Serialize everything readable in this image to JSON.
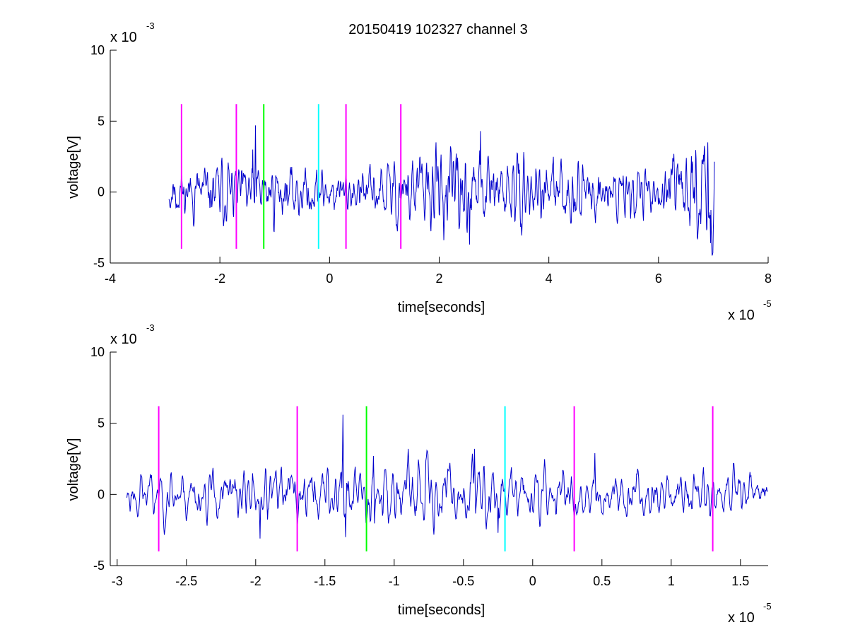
{
  "figure_title": "20150419 102327 channel 3",
  "chart_data": [
    {
      "type": "line",
      "title": "20150419 102327 channel 3",
      "xlabel": "time[seconds]",
      "ylabel": "voltage[V]",
      "x_multiplier": "x 10",
      "x_exponent": "-5",
      "y_multiplier": "x 10",
      "y_exponent": "-3",
      "xlim": [
        -4,
        8
      ],
      "ylim": [
        -5,
        10
      ],
      "xticks": [
        -4,
        -2,
        0,
        2,
        4,
        6,
        8
      ],
      "yticks": [
        -5,
        0,
        5,
        10
      ],
      "xtick_labels": [
        "-4",
        "-2",
        "0",
        "2",
        "4",
        "6",
        "8"
      ],
      "ytick_labels": [
        "-5",
        "0",
        "5",
        "10"
      ],
      "grid": false,
      "signal": {
        "color": "#0000cc",
        "x_range": [
          -2.93,
          7.02
        ],
        "seed": 11,
        "amplitude_profile": [
          [
            -2.93,
            0.9
          ],
          [
            -1.5,
            1.0
          ],
          [
            0.5,
            0.7
          ],
          [
            1.8,
            1.5
          ],
          [
            3.0,
            1.2
          ],
          [
            4.5,
            1.0
          ],
          [
            6.0,
            0.8
          ],
          [
            7.02,
            1.9
          ]
        ],
        "features": [
          {
            "x": -1.35,
            "y": 4.7
          },
          {
            "x": -1.4,
            "y": 3.0
          },
          {
            "x": 2.75,
            "y": 4.3
          },
          {
            "x": 2.55,
            "y": -3.7
          },
          {
            "x": 6.9,
            "y": 3.5
          },
          {
            "x": 6.95,
            "y": -3.6
          }
        ]
      },
      "markers": [
        {
          "x": -2.7,
          "y0": -4,
          "y1": 6.2,
          "color": "#ff00ff"
        },
        {
          "x": -1.7,
          "y0": -4,
          "y1": 6.2,
          "color": "#ff00ff"
        },
        {
          "x": -1.2,
          "y0": -4,
          "y1": 6.2,
          "color": "#00ff00"
        },
        {
          "x": -0.2,
          "y0": -4,
          "y1": 6.2,
          "color": "#00ffff"
        },
        {
          "x": 0.3,
          "y0": -4,
          "y1": 6.2,
          "color": "#ff00ff"
        },
        {
          "x": 1.3,
          "y0": -4,
          "y1": 6.2,
          "color": "#ff00ff"
        }
      ]
    },
    {
      "type": "line",
      "title": "",
      "xlabel": "time[seconds]",
      "ylabel": "voltage[V]",
      "x_multiplier": "x 10",
      "x_exponent": "-5",
      "y_multiplier": "x 10",
      "y_exponent": "-3",
      "xlim": [
        -3.05,
        1.7
      ],
      "ylim": [
        -5,
        10
      ],
      "xticks": [
        -3,
        -2.5,
        -2,
        -1.5,
        -1,
        -0.5,
        0,
        0.5,
        1,
        1.5
      ],
      "yticks": [
        -5,
        0,
        5,
        10
      ],
      "xtick_labels": [
        "-3",
        "-2.5",
        "-2",
        "-1.5",
        "-1",
        "-0.5",
        "0",
        "0.5",
        "1",
        "1.5"
      ],
      "ytick_labels": [
        "-5",
        "0",
        "5",
        "10"
      ],
      "grid": false,
      "signal": {
        "color": "#0000cc",
        "x_range": [
          -2.93,
          1.7
        ],
        "seed": 23,
        "amplitude_profile": [
          [
            -2.93,
            0.8
          ],
          [
            -2.0,
            0.9
          ],
          [
            -1.4,
            1.1
          ],
          [
            -0.5,
            1.1
          ],
          [
            0.0,
            0.9
          ],
          [
            1.0,
            0.7
          ],
          [
            1.7,
            0.7
          ]
        ],
        "features": [
          {
            "x": -1.37,
            "y": 5.6
          },
          {
            "x": -1.35,
            "y": -3.0
          },
          {
            "x": -1.97,
            "y": 2.3
          },
          {
            "x": -1.97,
            "y": -3.1
          },
          {
            "x": -0.42,
            "y": 3.2
          },
          {
            "x": -0.25,
            "y": -2.7
          },
          {
            "x": 0.45,
            "y": 2.9
          },
          {
            "x": -1.15,
            "y": 2.7
          }
        ]
      },
      "markers": [
        {
          "x": -2.7,
          "y0": -4,
          "y1": 6.2,
          "color": "#ff00ff"
        },
        {
          "x": -1.7,
          "y0": -4,
          "y1": 6.2,
          "color": "#ff00ff"
        },
        {
          "x": -1.2,
          "y0": -4,
          "y1": 6.2,
          "color": "#00ff00"
        },
        {
          "x": -0.2,
          "y0": -4,
          "y1": 6.2,
          "color": "#00ffff"
        },
        {
          "x": 0.3,
          "y0": -4,
          "y1": 6.2,
          "color": "#ff00ff"
        },
        {
          "x": 1.3,
          "y0": -4,
          "y1": 6.2,
          "color": "#ff00ff"
        }
      ]
    }
  ]
}
